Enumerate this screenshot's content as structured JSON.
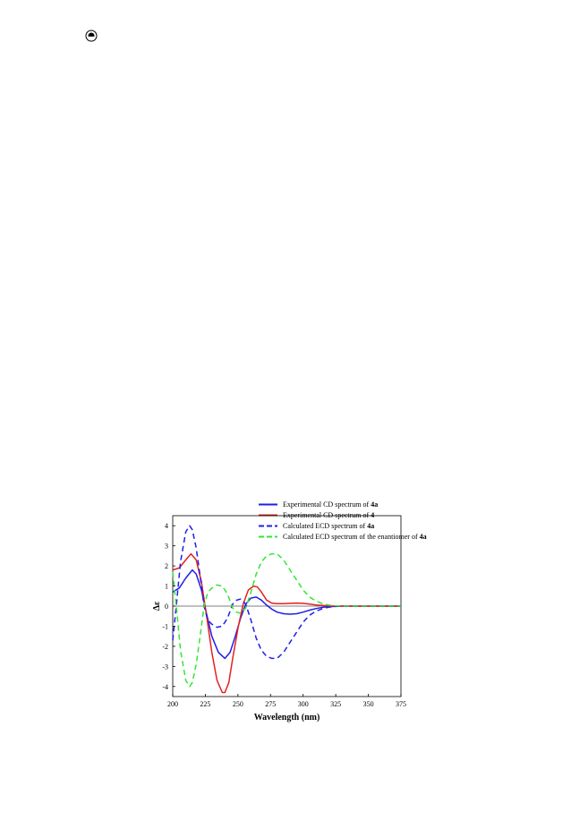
{
  "page": {
    "icon": "ecd-page-icon"
  },
  "chart_data": {
    "type": "line",
    "title": "",
    "xlabel": "Wavelength (nm)",
    "ylabel": "Δε",
    "xlim": [
      200,
      375
    ],
    "ylim": [
      -4.5,
      4.5
    ],
    "xticks": [
      200,
      225,
      250,
      275,
      300,
      325,
      350,
      375
    ],
    "yticks": [
      4,
      3,
      2,
      1,
      0,
      -1,
      -2,
      -3,
      -4
    ],
    "grid": false,
    "zero_line": true,
    "legend_position": "top-right",
    "series": [
      {
        "name_parts": [
          {
            "t": "Experimental CD spectrum of "
          },
          {
            "t": "4a",
            "b": true
          }
        ],
        "color": "#1f1fe6",
        "style": "solid",
        "x": [
          200,
          205,
          210,
          215,
          218,
          222,
          226,
          230,
          235,
          240,
          244,
          248,
          252,
          256,
          260,
          264,
          268,
          272,
          276,
          280,
          285,
          290,
          295,
          300,
          305,
          310,
          315,
          320,
          325,
          330,
          340,
          350,
          360,
          375
        ],
        "y": [
          0.7,
          0.9,
          1.4,
          1.8,
          1.6,
          0.8,
          -0.4,
          -1.5,
          -2.3,
          -2.6,
          -2.3,
          -1.5,
          -0.6,
          0.1,
          0.4,
          0.45,
          0.3,
          0.05,
          -0.15,
          -0.3,
          -0.38,
          -0.4,
          -0.38,
          -0.3,
          -0.2,
          -0.12,
          -0.06,
          -0.03,
          -0.01,
          0,
          0,
          0,
          0,
          0
        ]
      },
      {
        "name_parts": [
          {
            "t": "Experimental CD spectrum of "
          },
          {
            "t": "4",
            "b": true
          }
        ],
        "color": "#e62020",
        "style": "solid",
        "x": [
          200,
          205,
          210,
          214,
          218,
          222,
          226,
          230,
          234,
          238,
          240,
          243,
          246,
          250,
          254,
          258,
          262,
          265,
          268,
          272,
          276,
          280,
          285,
          290,
          295,
          300,
          305,
          310,
          315,
          320,
          325,
          330,
          340,
          350,
          360,
          375
        ],
        "y": [
          1.8,
          1.9,
          2.3,
          2.6,
          2.3,
          1.2,
          -0.5,
          -2.3,
          -3.7,
          -4.3,
          -4.3,
          -3.8,
          -2.6,
          -1.1,
          0.1,
          0.8,
          1.0,
          0.95,
          0.7,
          0.3,
          0.15,
          0.12,
          0.12,
          0.14,
          0.15,
          0.14,
          0.1,
          0.06,
          0.03,
          0.01,
          0,
          0,
          0,
          0,
          0,
          0
        ]
      },
      {
        "name_parts": [
          {
            "t": "Calculated ECD spectrum of "
          },
          {
            "t": "4a",
            "b": true
          }
        ],
        "color": "#1f1fe6",
        "style": "dashed",
        "x": [
          200,
          203,
          206,
          210,
          213,
          215,
          218,
          221,
          224,
          227,
          230,
          234,
          238,
          242,
          246,
          249,
          252,
          256,
          260,
          264,
          268,
          272,
          276,
          280,
          285,
          290,
          295,
          300,
          305,
          310,
          315,
          320,
          325,
          330,
          340,
          350,
          360,
          375
        ],
        "y": [
          -1.7,
          0.2,
          2.2,
          3.7,
          4.0,
          3.8,
          2.9,
          1.5,
          0.0,
          -0.7,
          -0.9,
          -1.05,
          -1.0,
          -0.6,
          0.1,
          0.3,
          0.35,
          0.1,
          -0.7,
          -1.6,
          -2.2,
          -2.5,
          -2.6,
          -2.6,
          -2.3,
          -1.8,
          -1.3,
          -0.8,
          -0.45,
          -0.25,
          -0.12,
          -0.05,
          -0.02,
          0,
          0,
          0,
          0,
          0
        ]
      },
      {
        "name_parts": [
          {
            "t": "Calculated ECD spectrum of the enantiomer of "
          },
          {
            "t": "4a",
            "b": true
          }
        ],
        "color": "#33e633",
        "style": "dashed",
        "x": [
          200,
          203,
          206,
          210,
          213,
          215,
          218,
          221,
          224,
          227,
          230,
          234,
          238,
          242,
          246,
          249,
          252,
          256,
          260,
          264,
          268,
          272,
          276,
          280,
          285,
          290,
          295,
          300,
          305,
          310,
          315,
          320,
          325,
          330,
          340,
          350,
          360,
          375
        ],
        "y": [
          1.7,
          -0.2,
          -2.2,
          -3.7,
          -4.0,
          -3.8,
          -2.9,
          -1.5,
          0.0,
          0.7,
          0.9,
          1.05,
          1.0,
          0.6,
          -0.1,
          -0.3,
          -0.35,
          -0.1,
          0.7,
          1.6,
          2.2,
          2.5,
          2.6,
          2.6,
          2.3,
          1.8,
          1.3,
          0.8,
          0.45,
          0.25,
          0.12,
          0.05,
          0.02,
          0,
          0,
          0,
          0,
          0
        ]
      }
    ]
  }
}
